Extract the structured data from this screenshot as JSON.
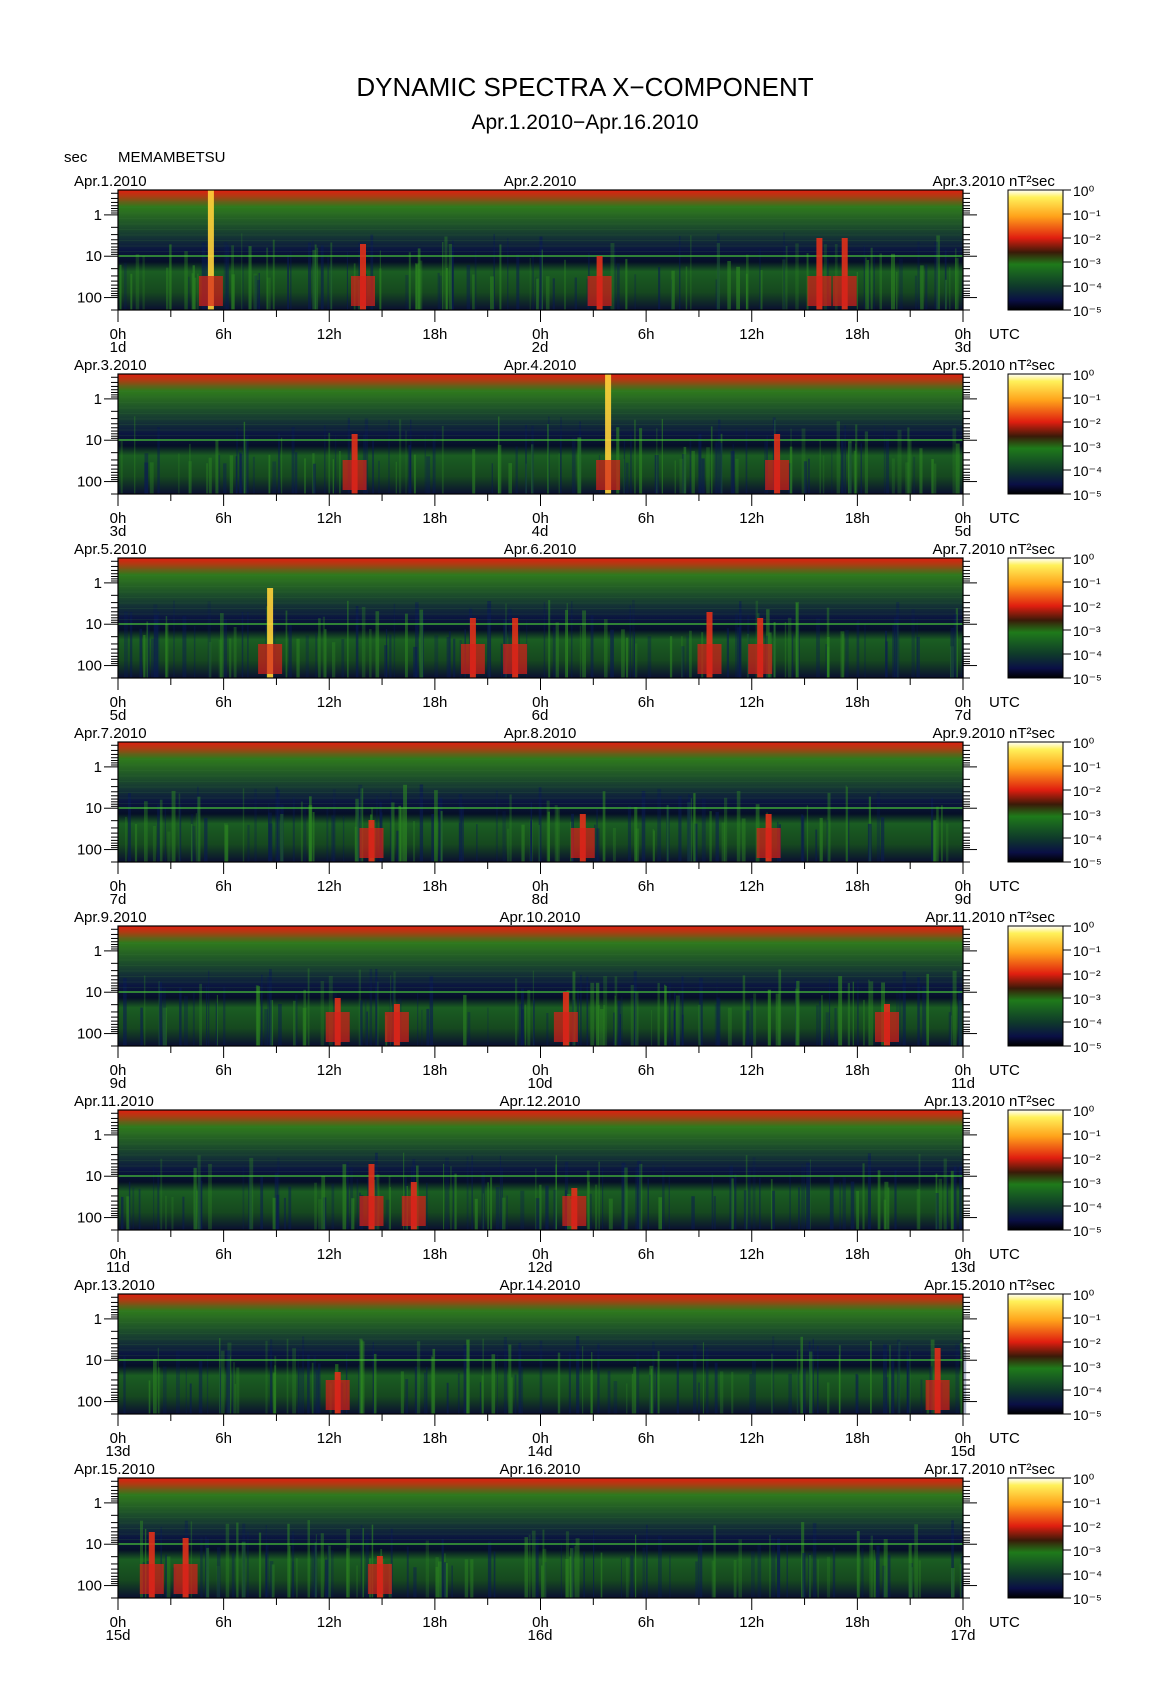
{
  "title": "DYNAMIC SPECTRA X−COMPONENT",
  "subtitle": "Apr.1.2010−Apr.16.2010",
  "y_unit": "sec",
  "station": "MEMAMBETSU",
  "colorbar_unit": "nT²sec",
  "colors": {
    "background": "#000000",
    "low": "#0a0f45",
    "mid": "#1f7a1a",
    "high": "#e01e10",
    "peak": "#fff15a"
  },
  "chart_data": {
    "type": "heatmap",
    "y_ticks": [
      "1",
      "10",
      "100"
    ],
    "x_ticks": [
      "0h",
      "6h",
      "12h",
      "18h",
      "0h",
      "6h",
      "12h",
      "18h",
      "0h"
    ],
    "x_unit_label": "UTC",
    "colorbar_ticks": [
      "10⁰",
      "10⁻¹",
      "10⁻²",
      "10⁻³",
      "10⁻⁴",
      "10⁻⁵"
    ],
    "colorbar_range_log10": [
      -5,
      0
    ],
    "panels": [
      {
        "date_left": "Apr.1.2010",
        "date_mid": "Apr.2.2010",
        "date_right": "Apr.3.2010",
        "day_left": "1d",
        "day_mid": "2d",
        "day_right": "3d",
        "bursts": [
          [
            0.11,
            1.0,
            0.55
          ],
          [
            0.29,
            0.55,
            0.45
          ],
          [
            0.57,
            0.45,
            0.35
          ],
          [
            0.83,
            0.6,
            0.5
          ],
          [
            0.86,
            0.6,
            0.45
          ]
        ]
      },
      {
        "date_left": "Apr.3.2010",
        "date_mid": "Apr.4.2010",
        "date_right": "Apr.5.2010",
        "day_left": "3d",
        "day_mid": "4d",
        "day_right": "5d",
        "bursts": [
          [
            0.58,
            1.0,
            0.55
          ],
          [
            0.28,
            0.5,
            0.35
          ],
          [
            0.78,
            0.5,
            0.35
          ]
        ]
      },
      {
        "date_left": "Apr.5.2010",
        "date_mid": "Apr.6.2010",
        "date_right": "Apr.7.2010",
        "day_left": "5d",
        "day_mid": "6d",
        "day_right": "7d",
        "bursts": [
          [
            0.18,
            0.75,
            0.6
          ],
          [
            0.42,
            0.5,
            0.45
          ],
          [
            0.47,
            0.5,
            0.4
          ],
          [
            0.7,
            0.55,
            0.5
          ],
          [
            0.76,
            0.5,
            0.5
          ]
        ]
      },
      {
        "date_left": "Apr.7.2010",
        "date_mid": "Apr.8.2010",
        "date_right": "Apr.9.2010",
        "day_left": "7d",
        "day_mid": "8d",
        "day_right": "9d",
        "bursts": [
          [
            0.3,
            0.35,
            0.35
          ],
          [
            0.55,
            0.4,
            0.4
          ],
          [
            0.77,
            0.4,
            0.4
          ]
        ]
      },
      {
        "date_left": "Apr.9.2010",
        "date_mid": "Apr.10.2010",
        "date_right": "Apr.11.2010",
        "day_left": "9d",
        "day_mid": "10d",
        "day_right": "11d",
        "bursts": [
          [
            0.26,
            0.4,
            0.4
          ],
          [
            0.33,
            0.35,
            0.35
          ],
          [
            0.53,
            0.45,
            0.3
          ],
          [
            0.91,
            0.35,
            0.35
          ]
        ]
      },
      {
        "date_left": "Apr.11.2010",
        "date_mid": "Apr.12.2010",
        "date_right": "Apr.13.2010",
        "day_left": "11d",
        "day_mid": "12d",
        "day_right": "13d",
        "bursts": [
          [
            0.3,
            0.55,
            0.5
          ],
          [
            0.35,
            0.4,
            0.4
          ],
          [
            0.54,
            0.35,
            0.3
          ]
        ]
      },
      {
        "date_left": "Apr.13.2010",
        "date_mid": "Apr.14.2010",
        "date_right": "Apr.15.2010",
        "day_left": "13d",
        "day_mid": "14d",
        "day_right": "15d",
        "bursts": [
          [
            0.26,
            0.35,
            0.3
          ],
          [
            0.97,
            0.55,
            0.5
          ]
        ]
      },
      {
        "date_left": "Apr.15.2010",
        "date_mid": "Apr.16.2010",
        "date_right": "Apr.17.2010",
        "day_left": "15d",
        "day_mid": "16d",
        "day_right": "17d",
        "bursts": [
          [
            0.04,
            0.55,
            0.4
          ],
          [
            0.08,
            0.5,
            0.45
          ],
          [
            0.31,
            0.35,
            0.35
          ]
        ]
      }
    ]
  }
}
